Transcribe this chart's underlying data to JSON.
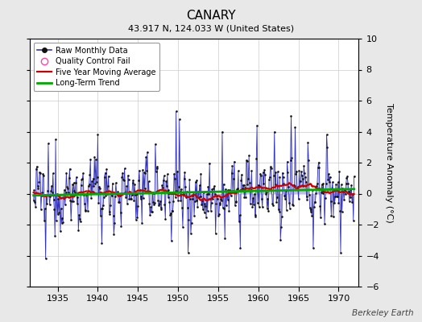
{
  "title": "CANARY",
  "subtitle": "43.917 N, 124.033 W (United States)",
  "ylabel": "Temperature Anomaly (°C)",
  "watermark": "Berkeley Earth",
  "ylim": [
    -6,
    10
  ],
  "yticks": [
    -6,
    -4,
    -2,
    0,
    2,
    4,
    6,
    8,
    10
  ],
  "xlim": [
    1931.5,
    1972.5
  ],
  "xticks": [
    1935,
    1940,
    1945,
    1950,
    1955,
    1960,
    1965,
    1970
  ],
  "year_start": 1932,
  "year_end": 1971,
  "seed": 12345,
  "background_color": "#e8e8e8",
  "plot_bg_color": "#ffffff",
  "line_color": "#3333bb",
  "fill_color": "#aaaadd",
  "ma_color": "#cc0000",
  "trend_color": "#00aa00",
  "dot_color": "#111111",
  "qc_color": "#ff44aa",
  "title_fontsize": 11,
  "subtitle_fontsize": 8,
  "tick_fontsize": 8,
  "ylabel_fontsize": 8
}
